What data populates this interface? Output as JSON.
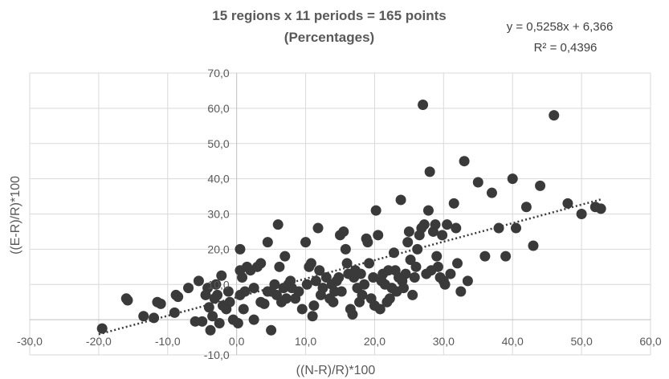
{
  "chart_data": {
    "type": "scatter",
    "title": [
      "15 regions x 11 periods = 165 points",
      "(Percentages)"
    ],
    "xlabel": "((N-R)/R)*100",
    "ylabel": "((E-R)/R)*100",
    "xlim": [
      -30,
      60
    ],
    "ylim": [
      -10,
      70
    ],
    "xticks": [
      -30,
      -20,
      -10,
      0,
      10,
      20,
      30,
      40,
      50,
      60
    ],
    "yticks": [
      -10,
      0,
      10,
      20,
      30,
      40,
      50,
      60,
      70
    ],
    "xtick_labels": [
      "-30,0",
      "-20,0",
      "-10,0",
      "0,0",
      "10,0",
      "20,0",
      "30,0",
      "40,0",
      "50,0",
      "60,0"
    ],
    "ytick_labels": [
      "-10,0",
      "",
      "10,0",
      "20,0",
      "30,0",
      "40,0",
      "50,0",
      "60,0",
      "70,0"
    ],
    "grid": true,
    "point_color": "#3a3a3a",
    "trendline": {
      "slope": 0.5258,
      "intercept": 6.366,
      "x_range": [
        -20,
        53
      ],
      "equation": "y = 0,5258x + 6,366",
      "r2": "R² = 0,4396"
    },
    "points": [
      [
        -19.5,
        -2.5
      ],
      [
        -16,
        6
      ],
      [
        -15.8,
        5.5
      ],
      [
        -13.5,
        1
      ],
      [
        -12,
        0.5
      ],
      [
        -11.5,
        5
      ],
      [
        -11,
        4.5
      ],
      [
        -9,
        2
      ],
      [
        -8.8,
        7
      ],
      [
        -8.5,
        6.5
      ],
      [
        -7,
        9
      ],
      [
        -6,
        -0.5
      ],
      [
        -5.5,
        11
      ],
      [
        -5,
        -0.5
      ],
      [
        -4.5,
        7
      ],
      [
        -4.2,
        9
      ],
      [
        -4,
        3.5
      ],
      [
        -3.8,
        -3
      ],
      [
        -3.5,
        1
      ],
      [
        -3.2,
        6
      ],
      [
        -3,
        10
      ],
      [
        -2.8,
        7
      ],
      [
        -2.5,
        -1
      ],
      [
        -2.2,
        12.5
      ],
      [
        -2,
        4
      ],
      [
        -1.5,
        3
      ],
      [
        -1.2,
        8
      ],
      [
        -1,
        5
      ],
      [
        -0.5,
        0
      ],
      [
        0.5,
        7
      ],
      [
        0.8,
        12
      ],
      [
        0.2,
        -1
      ],
      [
        0.5,
        20
      ],
      [
        0.5,
        14
      ],
      [
        1,
        3
      ],
      [
        1.2,
        8
      ],
      [
        1.5,
        15
      ],
      [
        2,
        14
      ],
      [
        2.5,
        9
      ],
      [
        2.5,
        0
      ],
      [
        3,
        15
      ],
      [
        3.5,
        16
      ],
      [
        3.5,
        5
      ],
      [
        4,
        4.5
      ],
      [
        4.5,
        22
      ],
      [
        4.5,
        8
      ],
      [
        5,
        -3
      ],
      [
        5,
        8
      ],
      [
        5.5,
        10
      ],
      [
        5.8,
        7
      ],
      [
        6,
        27
      ],
      [
        6.2,
        15
      ],
      [
        6.5,
        5
      ],
      [
        6.8,
        9
      ],
      [
        7,
        18
      ],
      [
        7.2,
        6
      ],
      [
        7.5,
        10
      ],
      [
        7.8,
        11
      ],
      [
        8,
        9
      ],
      [
        8.5,
        6
      ],
      [
        9,
        8
      ],
      [
        9.5,
        3
      ],
      [
        10,
        22
      ],
      [
        10.2,
        10
      ],
      [
        10.5,
        15
      ],
      [
        10.8,
        16
      ],
      [
        11,
        1
      ],
      [
        11.2,
        4
      ],
      [
        11.5,
        11
      ],
      [
        11.8,
        26
      ],
      [
        12,
        14
      ],
      [
        12.2,
        7
      ],
      [
        12.5,
        9
      ],
      [
        13,
        12
      ],
      [
        13.5,
        6
      ],
      [
        13.8,
        10
      ],
      [
        14,
        5
      ],
      [
        14.2,
        8
      ],
      [
        14.5,
        11
      ],
      [
        14.8,
        12
      ],
      [
        15,
        24
      ],
      [
        15.2,
        8
      ],
      [
        15.5,
        25
      ],
      [
        15.8,
        20
      ],
      [
        16,
        16
      ],
      [
        16.2,
        13
      ],
      [
        16.5,
        3
      ],
      [
        16.8,
        1.5
      ],
      [
        17,
        12
      ],
      [
        17.2,
        14
      ],
      [
        17.5,
        9
      ],
      [
        17.8,
        5
      ],
      [
        18,
        13
      ],
      [
        18.2,
        7
      ],
      [
        18.5,
        10
      ],
      [
        18.8,
        23
      ],
      [
        19,
        22
      ],
      [
        19.2,
        16
      ],
      [
        19.5,
        6
      ],
      [
        19.8,
        12
      ],
      [
        20,
        4
      ],
      [
        20.2,
        31
      ],
      [
        20.5,
        24
      ],
      [
        20.8,
        3
      ],
      [
        21,
        11
      ],
      [
        21.2,
        13
      ],
      [
        21.5,
        10
      ],
      [
        21.8,
        5
      ],
      [
        22,
        14
      ],
      [
        22.2,
        6
      ],
      [
        22.5,
        9
      ],
      [
        22.8,
        19
      ],
      [
        23,
        14
      ],
      [
        23.2,
        8
      ],
      [
        23.5,
        12
      ],
      [
        23.8,
        34
      ],
      [
        24,
        11
      ],
      [
        24.2,
        9
      ],
      [
        24.5,
        13
      ],
      [
        24.8,
        22
      ],
      [
        25,
        25
      ],
      [
        25.2,
        17
      ],
      [
        25.5,
        7
      ],
      [
        25.8,
        12
      ],
      [
        26,
        15
      ],
      [
        26.2,
        20
      ],
      [
        26.5,
        24
      ],
      [
        26.8,
        26
      ],
      [
        27,
        61
      ],
      [
        27.2,
        27
      ],
      [
        27.5,
        13
      ],
      [
        27.8,
        31
      ],
      [
        28,
        42
      ],
      [
        28.2,
        14
      ],
      [
        28.5,
        25
      ],
      [
        28.8,
        27
      ],
      [
        29,
        18
      ],
      [
        29.2,
        15
      ],
      [
        29.5,
        12
      ],
      [
        29.8,
        24
      ],
      [
        30,
        11
      ],
      [
        30.2,
        10
      ],
      [
        30.5,
        27
      ],
      [
        31,
        13
      ],
      [
        31.5,
        33
      ],
      [
        31.8,
        26
      ],
      [
        32,
        16
      ],
      [
        32.5,
        8
      ],
      [
        33,
        45
      ],
      [
        33.5,
        11
      ],
      [
        35,
        39
      ],
      [
        36,
        18
      ],
      [
        37,
        36
      ],
      [
        38,
        26
      ],
      [
        39,
        18
      ],
      [
        40,
        40
      ],
      [
        40.5,
        26
      ],
      [
        42,
        32
      ],
      [
        43,
        21
      ],
      [
        44,
        38
      ],
      [
        46,
        58
      ],
      [
        48,
        33
      ],
      [
        50,
        30
      ],
      [
        52,
        32
      ],
      [
        52.8,
        31.5
      ]
    ]
  }
}
